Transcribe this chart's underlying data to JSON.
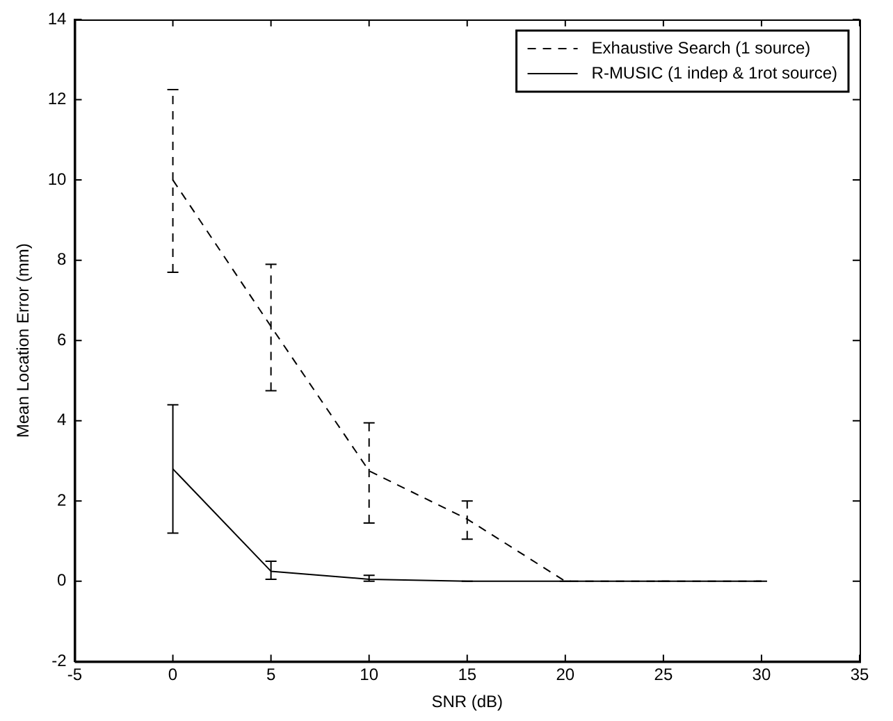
{
  "chart_data": {
    "type": "line",
    "xlabel": "SNR (dB)",
    "ylabel": "Mean Location Error (mm)",
    "x": [
      0,
      5,
      10,
      15,
      20,
      25,
      30
    ],
    "xlim": [
      -5,
      35
    ],
    "xticks": [
      -5,
      0,
      5,
      10,
      15,
      20,
      25,
      30,
      35
    ],
    "ylim": [
      -2,
      14
    ],
    "yticks": [
      -2,
      0,
      2,
      4,
      6,
      8,
      10,
      12,
      14
    ],
    "grid": false,
    "legend": "top right",
    "marker": "none",
    "series": [
      {
        "name": "Exhaustive Search (1 source)",
        "color": "#000000",
        "line_style": "dashed",
        "values": [
          10,
          6.35,
          2.75,
          1.55,
          0,
          0,
          0
        ],
        "errors": [
          [
            7.7,
            12.25
          ],
          [
            4.75,
            7.9
          ],
          [
            1.45,
            3.95
          ],
          [
            1.05,
            2
          ],
          null,
          null,
          null
        ]
      },
      {
        "name": "R-MUSIC (1 indep & 1rot source)",
        "color": "#000000",
        "line_style": "solid",
        "values": [
          2.8,
          0.25,
          0.05,
          0,
          0,
          0,
          0
        ],
        "errors": [
          [
            1.2,
            4.4
          ],
          [
            0.05,
            0.5
          ],
          [
            0,
            0.15
          ],
          [
            0,
            0
          ],
          [
            0,
            0
          ],
          [
            0,
            0
          ],
          [
            0,
            0
          ]
        ]
      }
    ]
  }
}
